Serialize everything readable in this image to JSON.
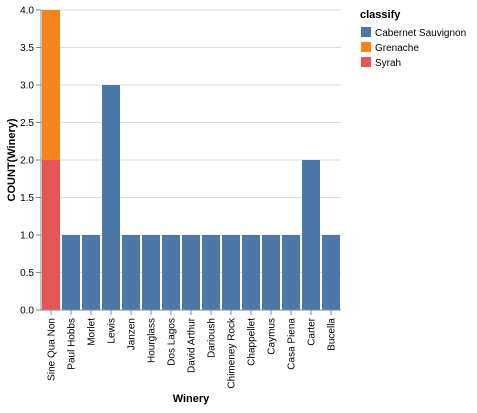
{
  "chart_data": {
    "type": "bar",
    "stacked": true,
    "xlabel": "Winery",
    "ylabel": "COUNT(Winery)",
    "ylim": [
      0,
      4
    ],
    "y_ticks": [
      "0.0",
      "0.5",
      "1.0",
      "1.5",
      "2.0",
      "2.5",
      "3.0",
      "3.5",
      "4.0"
    ],
    "grid": true,
    "legend_placement": "top-right",
    "legend_title": "classify",
    "categories": [
      "Sine Qua Non",
      "Paul Hobbs",
      "Morlet",
      "Lewis",
      "Janzen",
      "Hourglass",
      "Dos Lagos",
      "David Arthur",
      "Darioush",
      "Chimeney Rock",
      "Chappellet",
      "Caymus",
      "Casa Piena",
      "Carter",
      "Bucella"
    ],
    "series": [
      {
        "name": "Cabernet Sauvignon",
        "color": "#4c78a8",
        "values": [
          0,
          1,
          1,
          3,
          1,
          1,
          1,
          1,
          1,
          1,
          1,
          1,
          1,
          2,
          1
        ]
      },
      {
        "name": "Grenache",
        "color": "#f58518",
        "values": [
          2,
          0,
          0,
          0,
          0,
          0,
          0,
          0,
          0,
          0,
          0,
          0,
          0,
          0,
          0
        ]
      },
      {
        "name": "Syrah",
        "color": "#e45756",
        "values": [
          2,
          0,
          0,
          0,
          0,
          0,
          0,
          0,
          0,
          0,
          0,
          0,
          0,
          0,
          0
        ]
      }
    ],
    "stack_order": [
      "Syrah",
      "Grenache",
      "Cabernet Sauvignon"
    ]
  }
}
